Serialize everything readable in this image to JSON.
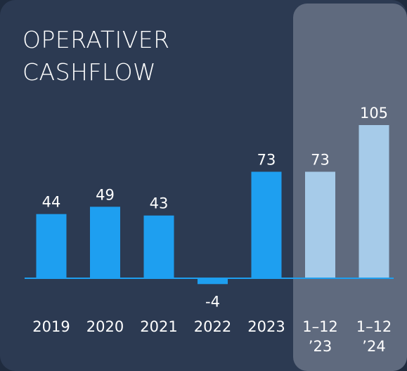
{
  "chart_data": {
    "type": "bar",
    "title": [
      "OPERATIVER",
      "CASHFLOW"
    ],
    "categories": [
      "2019",
      "2020",
      "2021",
      "2022",
      "2023",
      "1–12 ’23",
      "1–12 ’24"
    ],
    "values": [
      44,
      49,
      43,
      -4,
      73,
      73,
      105
    ],
    "colors": [
      "#1e9ff0",
      "#1e9ff0",
      "#1e9ff0",
      "#1e9ff0",
      "#1e9ff0",
      "#a6cbe9",
      "#a6cbe9"
    ]
  }
}
